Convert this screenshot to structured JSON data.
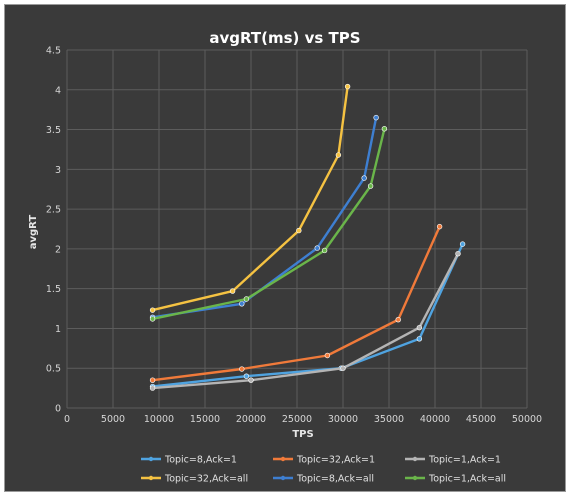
{
  "chart_data": {
    "type": "line",
    "title": "avgRT(ms) vs TPS",
    "xlabel": "TPS",
    "ylabel": "avgRT",
    "xlim": [
      0,
      50000
    ],
    "ylim": [
      0,
      4.5
    ],
    "xticks": [
      "0",
      "5000",
      "10000",
      "15000",
      "20000",
      "25000",
      "30000",
      "35000",
      "40000",
      "45000",
      "50000"
    ],
    "yticks": [
      "0",
      "0.5",
      "1",
      "1.5",
      "2",
      "2.5",
      "3",
      "3.5",
      "4",
      "4.5"
    ],
    "grid": true,
    "legend_position": "bottom",
    "series": [
      {
        "name": "Topic=8,Ack=1",
        "color": "#4fa3e0",
        "points": [
          [
            9300,
            0.27
          ],
          [
            19500,
            0.4
          ],
          [
            29800,
            0.5
          ],
          [
            38300,
            0.87
          ],
          [
            43000,
            2.06
          ]
        ]
      },
      {
        "name": "Topic=32,Ack=1",
        "color": "#f07a3a",
        "points": [
          [
            9300,
            0.35
          ],
          [
            19000,
            0.49
          ],
          [
            28300,
            0.66
          ],
          [
            36000,
            1.11
          ],
          [
            40500,
            2.28
          ]
        ]
      },
      {
        "name": "Topic=1,Ack=1",
        "color": "#b4b4b4",
        "points": [
          [
            9300,
            0.25
          ],
          [
            20000,
            0.35
          ],
          [
            30000,
            0.5
          ],
          [
            38300,
            1.01
          ],
          [
            42500,
            1.94
          ]
        ]
      },
      {
        "name": "Topic=32,Ack=all",
        "color": "#f5c242",
        "points": [
          [
            9300,
            1.23
          ],
          [
            18000,
            1.47
          ],
          [
            25200,
            2.23
          ],
          [
            29500,
            3.18
          ],
          [
            30500,
            4.04
          ]
        ]
      },
      {
        "name": "Topic=8,Ack=all",
        "color": "#3e7fd1",
        "points": [
          [
            9300,
            1.14
          ],
          [
            19000,
            1.31
          ],
          [
            27200,
            2.01
          ],
          [
            32300,
            2.89
          ],
          [
            33600,
            3.65
          ]
        ]
      },
      {
        "name": "Topic=1,Ack=all",
        "color": "#6ab54a",
        "points": [
          [
            9300,
            1.12
          ],
          [
            19500,
            1.37
          ],
          [
            28000,
            1.98
          ],
          [
            33000,
            2.79
          ],
          [
            34500,
            3.51
          ]
        ]
      }
    ]
  }
}
